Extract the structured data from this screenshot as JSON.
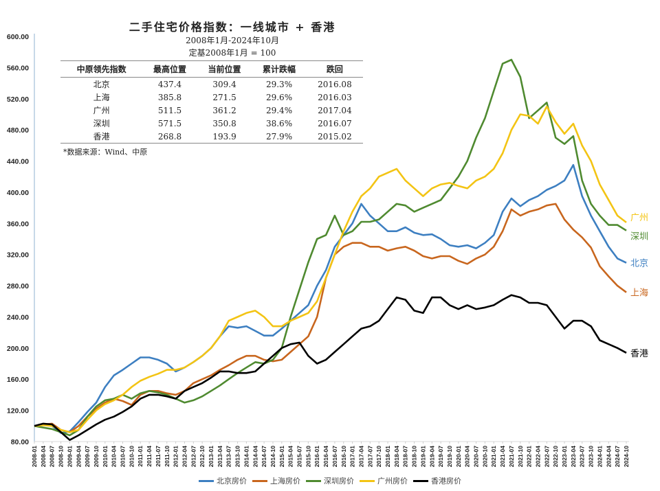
{
  "table": {
    "title": "二手住宅价格指数：一线城市 + 香港",
    "subtitle": "2008年1月-2024年10月",
    "base": "定基2008年1月 = 100",
    "headers": [
      "中原领先指数",
      "最高位置",
      "当前位置",
      "累计跌幅",
      "跌回"
    ],
    "rows": [
      [
        "北京",
        "437.4",
        "309.4",
        "29.3%",
        "2016.08"
      ],
      [
        "上海",
        "385.8",
        "271.5",
        "29.6%",
        "2016.03"
      ],
      [
        "广州",
        "511.5",
        "361.2",
        "29.4%",
        "2017.04"
      ],
      [
        "深圳",
        "571.5",
        "350.8",
        "38.6%",
        "2016.07"
      ],
      [
        "香港",
        "268.8",
        "193.9",
        "27.9%",
        "2015.02"
      ]
    ],
    "source": "*数据来源：Wind、中原"
  },
  "chart_data": {
    "type": "line",
    "title": "二手住宅价格指数：一线城市 + 香港",
    "xlabel": "",
    "ylabel": "",
    "ylim": [
      80,
      600
    ],
    "yticks": [
      "80.00",
      "120.00",
      "160.00",
      "200.00",
      "240.00",
      "280.00",
      "320.00",
      "360.00",
      "400.00",
      "440.00",
      "480.00",
      "520.00",
      "560.00",
      "600.00"
    ],
    "grid": false,
    "legend_position": "bottom",
    "x": [
      "2008-01",
      "2008-04",
      "2008-07",
      "2008-10",
      "2009-01",
      "2009-04",
      "2009-07",
      "2009-10",
      "2010-01",
      "2010-04",
      "2010-07",
      "2010-10",
      "2011-01",
      "2011-04",
      "2011-07",
      "2011-10",
      "2012-01",
      "2012-04",
      "2012-07",
      "2012-10",
      "2013-01",
      "2013-04",
      "2013-07",
      "2013-10",
      "2014-01",
      "2014-04",
      "2014-07",
      "2014-10",
      "2015-01",
      "2015-04",
      "2015-07",
      "2015-10",
      "2016-01",
      "2016-04",
      "2016-07",
      "2016-10",
      "2017-01",
      "2017-04",
      "2017-07",
      "2017-10",
      "2018-01",
      "2018-04",
      "2018-07",
      "2018-10",
      "2019-01",
      "2019-04",
      "2019-07",
      "2019-10",
      "2020-01",
      "2020-04",
      "2020-07",
      "2020-10",
      "2021-01",
      "2021-04",
      "2021-07",
      "2021-10",
      "2022-01",
      "2022-04",
      "2022-07",
      "2022-10",
      "2023-01",
      "2023-04",
      "2023-07",
      "2023-10",
      "2024-01",
      "2024-04",
      "2024-07",
      "2024-10"
    ],
    "series": [
      {
        "name": "北京房价",
        "end_label": "北京",
        "color": "#3d7fc1",
        "values": [
          100,
          102,
          100,
          91,
          93,
          105,
          118,
          130,
          150,
          165,
          172,
          180,
          188,
          188,
          185,
          180,
          170,
          175,
          182,
          190,
          200,
          215,
          228,
          226,
          228,
          222,
          216,
          216,
          225,
          235,
          245,
          255,
          280,
          300,
          330,
          345,
          360,
          385,
          370,
          360,
          350,
          350,
          355,
          348,
          345,
          346,
          340,
          332,
          330,
          332,
          328,
          335,
          345,
          375,
          392,
          382,
          390,
          395,
          403,
          408,
          415,
          435,
          395,
          370,
          350,
          330,
          315,
          309.4
        ]
      },
      {
        "name": "上海房价",
        "end_label": "上海",
        "color": "#c8661e",
        "values": [
          100,
          102,
          103,
          95,
          92,
          100,
          112,
          122,
          130,
          135,
          132,
          127,
          140,
          145,
          145,
          142,
          140,
          145,
          155,
          160,
          165,
          172,
          178,
          185,
          190,
          190,
          185,
          183,
          185,
          195,
          205,
          215,
          240,
          290,
          320,
          330,
          335,
          335,
          330,
          330,
          325,
          328,
          330,
          325,
          318,
          315,
          318,
          318,
          312,
          308,
          315,
          320,
          330,
          350,
          378,
          370,
          375,
          378,
          383,
          385,
          365,
          352,
          342,
          329,
          305,
          292,
          280,
          271.5
        ]
      },
      {
        "name": "深圳房价",
        "end_label": "深圳",
        "color": "#4f8a30",
        "values": [
          100,
          98,
          96,
          92,
          88,
          95,
          112,
          125,
          133,
          135,
          140,
          135,
          142,
          145,
          143,
          140,
          135,
          130,
          133,
          138,
          145,
          152,
          160,
          168,
          175,
          182,
          180,
          185,
          200,
          240,
          275,
          310,
          340,
          345,
          370,
          345,
          350,
          362,
          362,
          365,
          375,
          385,
          383,
          375,
          380,
          385,
          390,
          405,
          420,
          440,
          470,
          495,
          530,
          565,
          570,
          548,
          495,
          505,
          515,
          470,
          462,
          472,
          415,
          385,
          370,
          358,
          358,
          350.8
        ]
      },
      {
        "name": "广州房价",
        "end_label": "广州",
        "color": "#f3c414",
        "values": [
          100,
          101,
          100,
          95,
          92,
          95,
          108,
          120,
          128,
          133,
          140,
          150,
          158,
          163,
          167,
          172,
          172,
          175,
          182,
          190,
          200,
          215,
          235,
          240,
          245,
          248,
          240,
          228,
          228,
          235,
          240,
          245,
          260,
          290,
          320,
          350,
          375,
          395,
          405,
          420,
          425,
          430,
          415,
          405,
          395,
          405,
          410,
          412,
          408,
          405,
          415,
          420,
          430,
          450,
          480,
          500,
          498,
          488,
          510,
          490,
          475,
          488,
          460,
          440,
          410,
          390,
          370,
          361.2
        ]
      },
      {
        "name": "香港房价",
        "end_label": "香港",
        "color": "#000000",
        "values": [
          100,
          103,
          102,
          92,
          82,
          88,
          95,
          102,
          108,
          112,
          118,
          125,
          135,
          140,
          140,
          138,
          135,
          145,
          150,
          155,
          162,
          170,
          170,
          168,
          168,
          170,
          180,
          190,
          200,
          205,
          207,
          190,
          180,
          185,
          195,
          205,
          215,
          225,
          228,
          235,
          250,
          265,
          262,
          248,
          245,
          265,
          265,
          255,
          250,
          255,
          250,
          252,
          255,
          262,
          268,
          265,
          258,
          258,
          255,
          240,
          225,
          235,
          235,
          228,
          210,
          205,
          200,
          193.9
        ]
      }
    ]
  }
}
